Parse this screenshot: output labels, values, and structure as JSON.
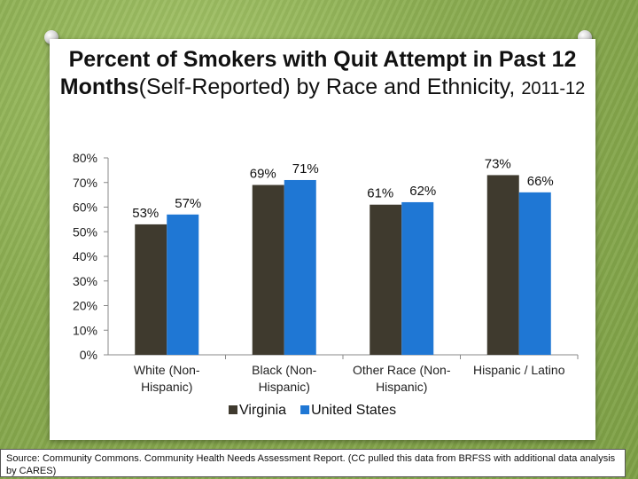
{
  "title": {
    "bold": "Percent of Smokers with Quit Attempt in Past 12 Months",
    "regular": "(Self-Reported) by Race and Ethnicity, ",
    "small": "2011-12"
  },
  "chart_data": {
    "type": "bar",
    "categories": [
      [
        "White (Non-",
        "Hispanic)"
      ],
      [
        "Black (Non-",
        "Hispanic)"
      ],
      [
        "Other Race (Non-",
        "Hispanic)"
      ],
      [
        "Hispanic / Latino"
      ]
    ],
    "series": [
      {
        "name": "Virginia",
        "color": "#3f3a2e",
        "values": [
          53,
          69,
          61,
          73
        ],
        "labels": [
          "53%",
          "69%",
          "61%",
          "73%"
        ]
      },
      {
        "name": "United States",
        "color": "#1f77d4",
        "values": [
          57,
          71,
          62,
          66
        ],
        "labels": [
          "57%",
          "71%",
          "62%",
          "66%"
        ]
      }
    ],
    "ylim": [
      0,
      80
    ],
    "yticks": [
      0,
      10,
      20,
      30,
      40,
      50,
      60,
      70,
      80
    ],
    "ytick_labels": [
      "0%",
      "10%",
      "20%",
      "30%",
      "40%",
      "50%",
      "60%",
      "70%",
      "80%"
    ],
    "grid": false,
    "legend_position": "bottom"
  },
  "source": "Source: Community Commons. Community Health Needs Assessment Report. (CC pulled this data from BRFSS with additional data analysis by CARES)"
}
